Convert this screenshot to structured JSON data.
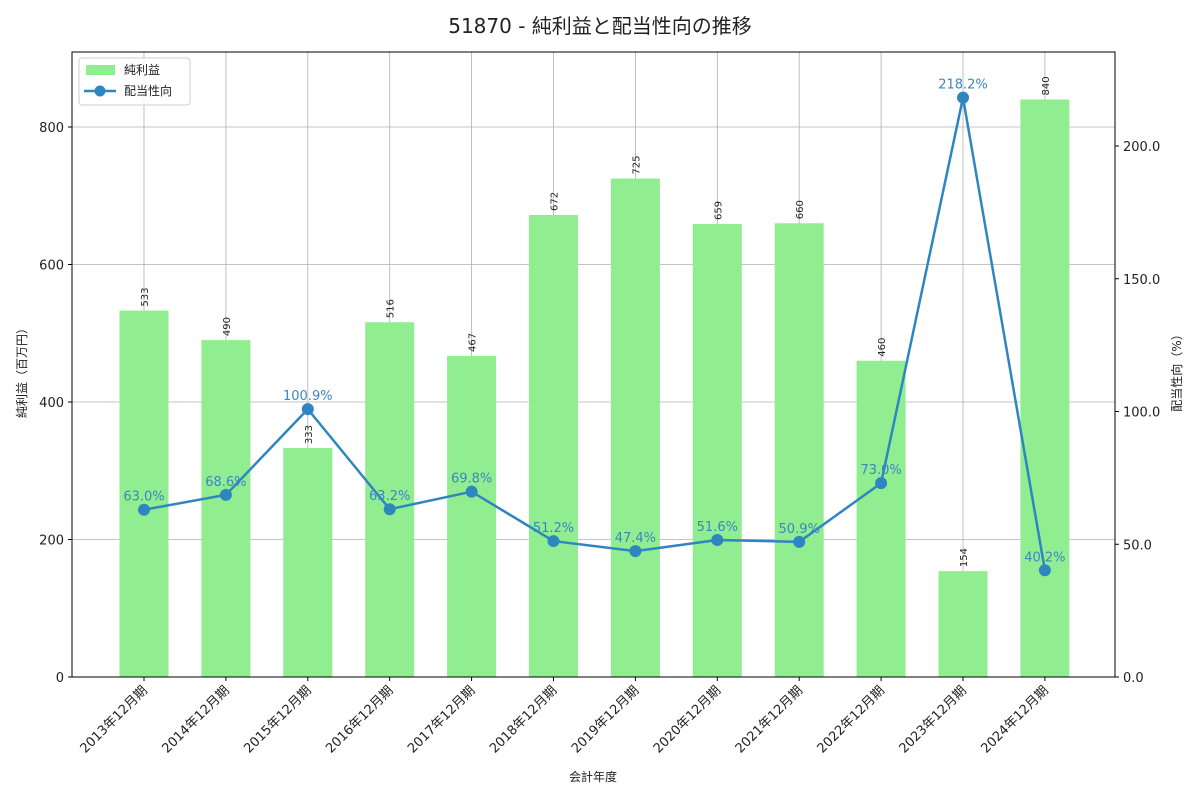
{
  "title": "51870 - 純利益と配当性向の推移",
  "chart_data": {
    "type": "bar+line",
    "title": "51870 - 純利益と配当性向の推移",
    "xlabel": "会計年度",
    "ylabel": "純利益（百万円）",
    "y2label": "配当性向（%）",
    "categories": [
      "2013年12月期",
      "2014年12月期",
      "2015年12月期",
      "2016年12月期",
      "2017年12月期",
      "2018年12月期",
      "2019年12月期",
      "2020年12月期",
      "2021年12月期",
      "2022年12月期",
      "2023年12月期",
      "2024年12月期"
    ],
    "series": [
      {
        "name": "純利益",
        "type": "bar",
        "axis": "left",
        "color": "#90ee90",
        "values": [
          533,
          490,
          333,
          516,
          467,
          672,
          725,
          659,
          660,
          460,
          154,
          840
        ]
      },
      {
        "name": "配当性向",
        "type": "line",
        "axis": "right",
        "color": "#2e86c1",
        "values": [
          63.0,
          68.6,
          100.9,
          63.2,
          69.8,
          51.2,
          47.4,
          51.6,
          50.9,
          73.0,
          218.2,
          40.2
        ]
      }
    ],
    "ylim": [
      0,
      910
    ],
    "y2lim": [
      0,
      235
    ],
    "yticks": [
      0,
      200,
      400,
      600,
      800
    ],
    "y2ticks": [
      "0.0",
      "50.0",
      "100.0",
      "150.0",
      "200.0"
    ],
    "grid": true,
    "legend_position": "upper left"
  },
  "legend": {
    "bar_label": "純利益",
    "line_label": "配当性向"
  }
}
